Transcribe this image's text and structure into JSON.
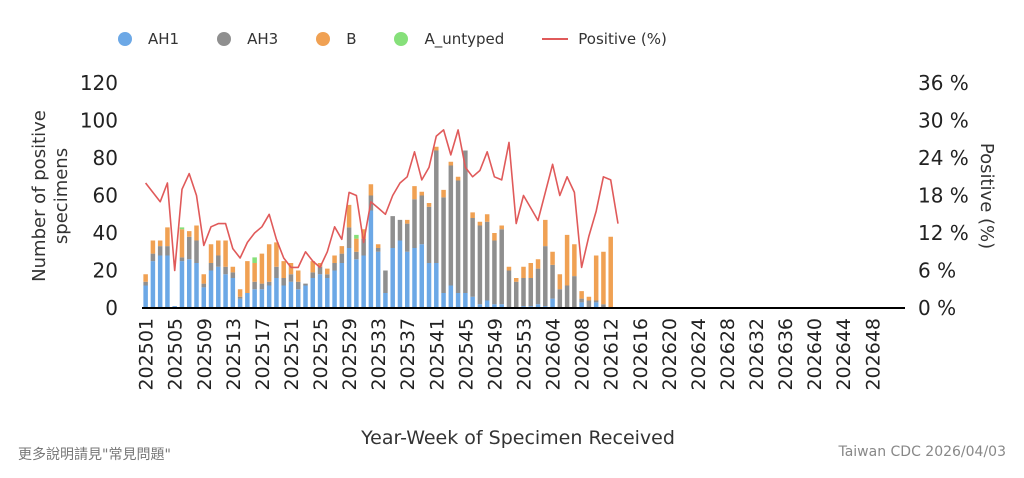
{
  "legend": {
    "items": [
      {
        "name": "AH1",
        "color": "#6CA8E6",
        "shape": "dot"
      },
      {
        "name": "AH3",
        "color": "#8F8F8F",
        "shape": "dot"
      },
      {
        "name": "B",
        "color": "#F0A153",
        "shape": "dot"
      },
      {
        "name": "A_untyped",
        "color": "#86E07A",
        "shape": "dot"
      },
      {
        "name": "Positive (%)",
        "color": "#E05A5A",
        "shape": "line"
      }
    ]
  },
  "footer": {
    "left": "更多說明請見\"常見問題\"",
    "right": "Taiwan CDC 2026/04/03"
  },
  "chart_data": {
    "type": "bar",
    "stacked": true,
    "title": "",
    "xlabel": "Year-Week of Specimen Received",
    "ylabel": "Number of positive specimens",
    "y2label": "Positive (%)",
    "ylim": [
      0,
      120
    ],
    "y2lim": [
      0,
      36
    ],
    "yticks": [
      "0",
      "20",
      "40",
      "60",
      "80",
      "100",
      "120"
    ],
    "y2ticks": [
      "0 %",
      "6 %",
      "12 %",
      "18 %",
      "24 %",
      "30 %",
      "36 %"
    ],
    "grid": false,
    "legend_position": "top",
    "x_tick_labels": [
      "202501",
      "202505",
      "202509",
      "202513",
      "202517",
      "202521",
      "202525",
      "202529",
      "202533",
      "202537",
      "202541",
      "202545",
      "202549",
      "202553",
      "202604",
      "202608",
      "202612",
      "202616",
      "202620",
      "202624",
      "202628",
      "202632",
      "202636",
      "202640",
      "202644",
      "202648"
    ],
    "categories": [
      "202501",
      "202502",
      "202503",
      "202504",
      "202505",
      "202506",
      "202507",
      "202508",
      "202509",
      "202510",
      "202511",
      "202512",
      "202513",
      "202514",
      "202515",
      "202516",
      "202517",
      "202518",
      "202519",
      "202520",
      "202521",
      "202522",
      "202523",
      "202524",
      "202525",
      "202526",
      "202527",
      "202528",
      "202529",
      "202530",
      "202531",
      "202532",
      "202533",
      "202534",
      "202535",
      "202536",
      "202537",
      "202538",
      "202539",
      "202540",
      "202541",
      "202542",
      "202543",
      "202544",
      "202545",
      "202546",
      "202547",
      "202548",
      "202549",
      "202550",
      "202551",
      "202552",
      "202553",
      "202601",
      "202602",
      "202603",
      "202604",
      "202605",
      "202606",
      "202607",
      "202608",
      "202609",
      "202610",
      "202611",
      "202612",
      "202613",
      "202614",
      "202615",
      "202616",
      "202617",
      "202618",
      "202619",
      "202620",
      "202621",
      "202622",
      "202623",
      "202624",
      "202625",
      "202626",
      "202627",
      "202628",
      "202629",
      "202630",
      "202631",
      "202632",
      "202633",
      "202634",
      "202635",
      "202636",
      "202637",
      "202638",
      "202639",
      "202640",
      "202641",
      "202642",
      "202643",
      "202644",
      "202645",
      "202646",
      "202647",
      "202648",
      "202649",
      "202650",
      "202651",
      "202652"
    ],
    "series": [
      {
        "name": "AH1",
        "values": [
          12,
          25,
          28,
          28,
          1,
          25,
          26,
          24,
          11,
          20,
          22,
          18,
          16,
          5,
          8,
          10,
          10,
          12,
          16,
          12,
          14,
          10,
          12,
          16,
          18,
          16,
          20,
          24,
          32,
          26,
          28,
          52,
          30,
          8,
          32,
          36,
          30,
          32,
          34,
          24,
          24,
          8,
          12,
          8,
          8,
          6,
          2,
          4,
          2,
          2,
          0,
          0,
          1,
          1,
          2,
          1,
          5,
          0,
          0,
          0,
          3,
          0,
          3,
          0,
          0,
          0,
          0,
          0,
          0,
          0,
          0,
          0,
          0,
          0,
          0,
          0,
          0,
          0,
          0,
          0,
          0,
          0,
          0,
          0,
          0,
          0,
          0,
          0,
          0,
          0,
          0,
          0,
          0,
          0,
          0,
          0,
          0,
          0,
          0,
          0,
          0,
          0,
          0,
          0,
          0
        ]
      },
      {
        "name": "AH3",
        "values": [
          2,
          4,
          5,
          5,
          0,
          2,
          12,
          12,
          2,
          4,
          6,
          4,
          3,
          1,
          0,
          4,
          3,
          2,
          6,
          4,
          4,
          4,
          1,
          3,
          4,
          2,
          4,
          5,
          11,
          4,
          9,
          8,
          2,
          12,
          17,
          11,
          15,
          26,
          26,
          30,
          60,
          51,
          64,
          60,
          76,
          42,
          42,
          42,
          34,
          40,
          20,
          14,
          15,
          15,
          19,
          32,
          18,
          10,
          12,
          17,
          2,
          4,
          1,
          2,
          0,
          0,
          0,
          0,
          0,
          0,
          0,
          0,
          0,
          0,
          0,
          0,
          0,
          0,
          0,
          0,
          0,
          0,
          0,
          0,
          0,
          0,
          0,
          0,
          0,
          0,
          0,
          0,
          0,
          0,
          0,
          0,
          0,
          0,
          0,
          0,
          0,
          0,
          0,
          0,
          0
        ]
      },
      {
        "name": "B",
        "values": [
          4,
          7,
          3,
          10,
          0,
          15,
          3,
          8,
          5,
          10,
          8,
          14,
          3,
          4,
          17,
          10,
          16,
          20,
          13,
          9,
          6,
          6,
          0,
          6,
          2,
          3,
          4,
          4,
          12,
          7,
          5,
          6,
          2,
          0,
          0,
          0,
          2,
          7,
          2,
          2,
          2,
          4,
          2,
          2,
          0,
          3,
          2,
          4,
          4,
          2,
          2,
          2,
          6,
          8,
          5,
          14,
          7,
          8,
          27,
          17,
          4,
          2,
          24,
          28,
          38,
          0,
          0,
          0,
          0,
          0,
          0,
          0,
          0,
          0,
          0,
          0,
          0,
          0,
          0,
          0,
          0,
          0,
          0,
          0,
          0,
          0,
          0,
          0,
          0,
          0,
          0,
          0,
          0,
          0,
          0,
          0,
          0,
          0,
          0,
          0,
          0,
          0,
          0,
          0,
          0
        ]
      },
      {
        "name": "A_untyped",
        "values": [
          0,
          0,
          0,
          0,
          0,
          1,
          0,
          0,
          0,
          0,
          0,
          0,
          0,
          0,
          0,
          3,
          0,
          0,
          0,
          0,
          0,
          0,
          0,
          0,
          0,
          0,
          0,
          0,
          0,
          2,
          0,
          0,
          0,
          0,
          0,
          0,
          0,
          0,
          0,
          0,
          0,
          0,
          0,
          0,
          0,
          0,
          0,
          0,
          0,
          0,
          0,
          0,
          0,
          0,
          0,
          0,
          0,
          0,
          0,
          0,
          0,
          0,
          0,
          0,
          0,
          0,
          0,
          0,
          0,
          0,
          0,
          0,
          0,
          0,
          0,
          0,
          0,
          0,
          0,
          0,
          0,
          0,
          0,
          0,
          0,
          0,
          0,
          0,
          0,
          0,
          0,
          0,
          0,
          0,
          0,
          0,
          0,
          0,
          0,
          0,
          0,
          0,
          0,
          0,
          0
        ]
      }
    ],
    "line": {
      "name": "Positive (%)",
      "values": [
        20,
        18.5,
        17,
        20,
        6,
        19,
        21.5,
        18,
        10,
        13,
        13.5,
        13.5,
        9.5,
        8,
        10.5,
        12,
        13,
        15,
        11,
        8,
        6.5,
        6.5,
        9,
        7.5,
        6.5,
        9,
        13,
        11,
        18.5,
        18,
        10.5,
        17,
        16,
        15,
        18,
        20,
        21,
        25,
        20.5,
        22.5,
        27.5,
        28.5,
        24.5,
        28.5,
        22.5,
        21,
        22,
        25,
        21,
        20.5,
        26.5,
        13.5,
        18,
        16,
        14,
        18.5,
        23,
        18,
        21,
        18.5,
        6.5,
        11.5,
        15.5,
        21,
        20.5,
        13.5
      ]
    }
  }
}
